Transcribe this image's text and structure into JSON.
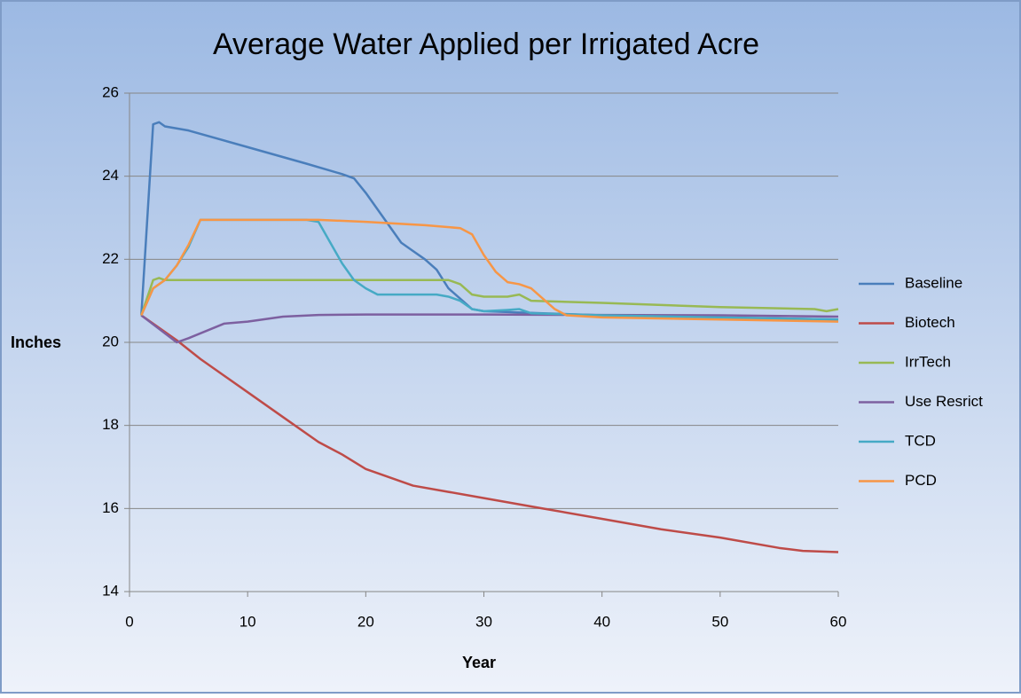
{
  "chart_data": {
    "type": "line",
    "title": "Average Water Applied per Irrigated Acre",
    "xlabel": "Year",
    "ylabel": "Inches",
    "xlim": [
      0,
      60
    ],
    "xticks": [
      0,
      10,
      20,
      30,
      40,
      50,
      60
    ],
    "ylim": [
      14,
      26
    ],
    "yticks": [
      14,
      16,
      18,
      20,
      22,
      24,
      26
    ],
    "grid": true,
    "legend": "right",
    "series": [
      {
        "name": "Baseline",
        "color": "#4a7ebb",
        "x": [
          1,
          2,
          2.5,
          3,
          5,
          10,
          15,
          18,
          19,
          20,
          22,
          23,
          24,
          25,
          26,
          27,
          28,
          29,
          30,
          35,
          40,
          50,
          60
        ],
        "values": [
          20.65,
          25.25,
          25.3,
          25.2,
          25.1,
          24.7,
          24.3,
          24.05,
          23.95,
          23.6,
          22.8,
          22.4,
          22.2,
          22.0,
          21.75,
          21.3,
          21.05,
          20.8,
          20.75,
          20.7,
          20.65,
          20.6,
          20.55
        ]
      },
      {
        "name": "Biotech",
        "color": "#be4b48",
        "x": [
          1,
          4,
          6,
          8,
          10,
          13,
          16,
          18,
          20,
          22,
          24,
          27,
          30,
          35,
          40,
          45,
          50,
          55,
          57,
          60
        ],
        "values": [
          20.65,
          20.05,
          19.6,
          19.2,
          18.8,
          18.2,
          17.6,
          17.3,
          16.95,
          16.75,
          16.55,
          16.4,
          16.25,
          16.0,
          15.75,
          15.5,
          15.3,
          15.05,
          14.98,
          14.95
        ]
      },
      {
        "name": "IrrTech",
        "color": "#98b954",
        "x": [
          1,
          2,
          2.5,
          3,
          10,
          20,
          27,
          28,
          29,
          30,
          32,
          33,
          34,
          40,
          50,
          58,
          59,
          60
        ],
        "values": [
          20.65,
          21.5,
          21.55,
          21.5,
          21.5,
          21.5,
          21.5,
          21.4,
          21.15,
          21.1,
          21.1,
          21.15,
          21.0,
          20.95,
          20.85,
          20.8,
          20.75,
          20.8
        ]
      },
      {
        "name": "Use Resrict",
        "color": "#7d60a0",
        "x": [
          1,
          4,
          5,
          8,
          10,
          13,
          16,
          20,
          30,
          40,
          50,
          60
        ],
        "values": [
          20.65,
          20.0,
          20.1,
          20.45,
          20.5,
          20.62,
          20.66,
          20.67,
          20.67,
          20.66,
          20.65,
          20.62
        ]
      },
      {
        "name": "TCD",
        "color": "#46aac5",
        "x": [
          1,
          2,
          3,
          4,
          5,
          6,
          7,
          10,
          15,
          16,
          17,
          18,
          19,
          20,
          21,
          22,
          26,
          27,
          28,
          29,
          30,
          32,
          33,
          34,
          40,
          50,
          60
        ],
        "values": [
          20.65,
          21.3,
          21.5,
          21.85,
          22.3,
          22.95,
          22.95,
          22.95,
          22.95,
          22.9,
          22.4,
          21.9,
          21.5,
          21.3,
          21.15,
          21.15,
          21.15,
          21.1,
          21.0,
          20.8,
          20.75,
          20.78,
          20.8,
          20.7,
          20.65,
          20.6,
          20.55
        ]
      },
      {
        "name": "PCD",
        "color": "#f79646",
        "x": [
          1,
          2,
          3,
          4,
          5,
          6,
          7,
          10,
          15,
          16,
          20,
          25,
          28,
          29,
          30,
          31,
          32,
          33,
          34,
          35,
          36,
          37,
          40,
          50,
          60
        ],
        "values": [
          20.65,
          21.3,
          21.5,
          21.85,
          22.35,
          22.95,
          22.95,
          22.95,
          22.95,
          22.95,
          22.9,
          22.82,
          22.75,
          22.6,
          22.1,
          21.7,
          21.45,
          21.4,
          21.3,
          21.05,
          20.8,
          20.65,
          20.6,
          20.55,
          20.5
        ]
      }
    ]
  }
}
